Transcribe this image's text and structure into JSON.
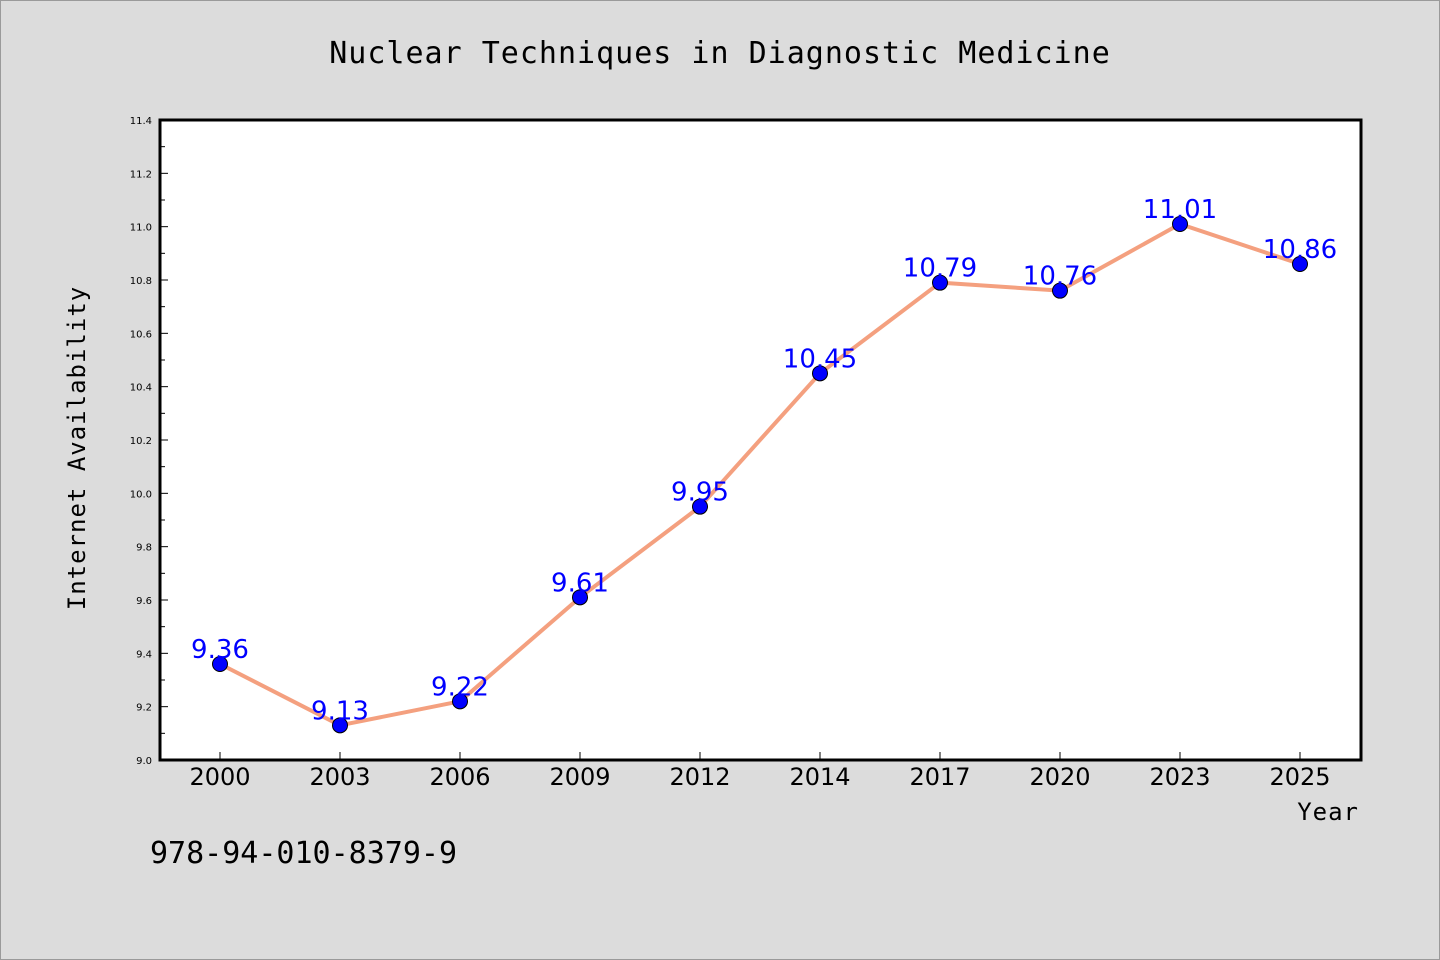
{
  "chart_data": {
    "type": "line",
    "title": "Nuclear Techniques in Diagnostic Medicine",
    "xlabel": "Year",
    "ylabel": "Internet Availability",
    "categories": [
      "2000",
      "2003",
      "2006",
      "2009",
      "2012",
      "2014",
      "2017",
      "2020",
      "2023",
      "2025"
    ],
    "series": [
      {
        "values": [
          9.36,
          9.13,
          9.22,
          9.61,
          9.95,
          10.45,
          10.79,
          10.76,
          11.01,
          10.86
        ],
        "labels": [
          "9.36",
          "9.13",
          "9.22",
          "9.61",
          "9.95",
          "10.45",
          "10.79",
          "10.76",
          "11.01",
          "10.86"
        ],
        "line_color": "#f4a07f",
        "marker_color": "#0000ff"
      }
    ],
    "ylim": [
      9.0,
      11.4
    ],
    "yticks": [
      "9.0",
      "9.2",
      "9.4",
      "9.6",
      "9.8",
      "10.0",
      "10.2",
      "10.4",
      "10.6",
      "10.8",
      "11.0",
      "11.2",
      "11.4"
    ],
    "grid": false,
    "legend": "none"
  },
  "footer": {
    "isbn": "978-94-010-8379-9"
  },
  "colors": {
    "background": "#dcdcdc",
    "plot_background": "#ffffff",
    "label_color": "#0000ff"
  }
}
